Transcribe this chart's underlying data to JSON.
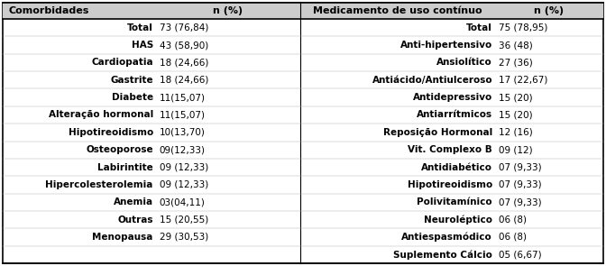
{
  "col_headers": [
    "Comorbidades",
    "n (%)",
    "Medicamento de uso contínuo",
    "n (%)"
  ],
  "left_rows": [
    [
      "Total",
      "73 (76,84)"
    ],
    [
      "HAS",
      "43 (58,90)"
    ],
    [
      "Cardiopatia",
      "18 (24,66)"
    ],
    [
      "Gastrite",
      "18 (24,66)"
    ],
    [
      "Diabete",
      "11(15,07)"
    ],
    [
      "Alteração hormonal",
      "11(15,07)"
    ],
    [
      "Hipotireoidismo",
      "10(13,70)"
    ],
    [
      "Osteoporose",
      "09(12,33)"
    ],
    [
      "Labirintite",
      "09 (12,33)"
    ],
    [
      "Hipercolesterolemia",
      "09 (12,33)"
    ],
    [
      "Anemia",
      "03(04,11)"
    ],
    [
      "Outras",
      "15 (20,55)"
    ],
    [
      "Menopausa",
      "29 (30,53)"
    ]
  ],
  "right_rows": [
    [
      "Total",
      "75 (78,95)"
    ],
    [
      "Anti-hipertensivo",
      "36 (48)"
    ],
    [
      "Ansiolítico",
      "27 (36)"
    ],
    [
      "Antiácido/Antiulceroso",
      "17 (22,67)"
    ],
    [
      "Antidepressivo",
      "15 (20)"
    ],
    [
      "Antiarrítmicos",
      "15 (20)"
    ],
    [
      "Reposição Hormonal",
      "12 (16)"
    ],
    [
      "Vit. Complexo B",
      "09 (12)"
    ],
    [
      "Antidiabético",
      "07 (9,33)"
    ],
    [
      "Hipotireoidismo",
      "07 (9,33)"
    ],
    [
      "Polivitamínico",
      "07 (9,33)"
    ],
    [
      "Neuroléptico",
      "06 (8)"
    ],
    [
      "Antiespasmódico",
      "06 (8)"
    ],
    [
      "Suplemento Cálcio",
      "05 (6,67)"
    ]
  ],
  "header_fontsize": 8.0,
  "cell_fontsize": 7.5,
  "figure_width": 6.72,
  "figure_height": 2.95,
  "dpi": 100
}
